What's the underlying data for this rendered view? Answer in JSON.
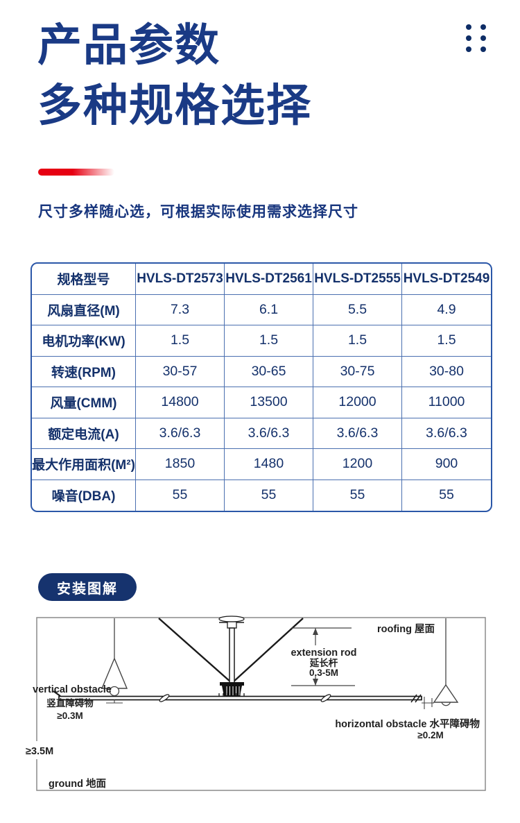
{
  "page": {
    "title_line1": "产品参数",
    "title_line2": "多种规格选择",
    "subtitle": "尺寸多样随心选，可根据实际使用需求选择尺寸"
  },
  "colors": {
    "navy_title": "#1a3a85",
    "table_border": "#2b57a8",
    "table_text": "#14316b",
    "accent_red": "#e60012",
    "button_bg": "#16336e"
  },
  "spec_table": {
    "header": [
      "规格型号",
      "HVLS-DT2573",
      "HVLS-DT2561",
      "HVLS-DT2555",
      "HVLS-DT2549"
    ],
    "rows": [
      {
        "label": "风扇直径(M)",
        "values": [
          "7.3",
          "6.1",
          "5.5",
          "4.9"
        ]
      },
      {
        "label": "电机功率(KW)",
        "values": [
          "1.5",
          "1.5",
          "1.5",
          "1.5"
        ]
      },
      {
        "label": "转速(RPM)",
        "values": [
          "30-57",
          "30-65",
          "30-75",
          "30-80"
        ]
      },
      {
        "label": "风量(CMM)",
        "values": [
          "14800",
          "13500",
          "12000",
          "11000"
        ]
      },
      {
        "label": "额定电流(A)",
        "values": [
          "3.6/6.3",
          "3.6/6.3",
          "3.6/6.3",
          "3.6/6.3"
        ]
      },
      {
        "label": "最大作用面积(M²)",
        "values": [
          "1850",
          "1480",
          "1200",
          "900"
        ]
      },
      {
        "label": "噪音(DBA)",
        "values": [
          "55",
          "55",
          "55",
          "55"
        ]
      }
    ]
  },
  "install": {
    "button_label": "安装图解",
    "labels": {
      "roofing": "roofing 屋面",
      "extension_rod_en": "extension rod",
      "extension_rod_cn": "延长杆",
      "extension_rod_range": "0.3-5M",
      "vertical_obstacle_en": "vertical obstacle",
      "vertical_obstacle_cn": "竖直障碍物",
      "vertical_obstacle_min": "≥0.3M",
      "horizontal_obstacle": "horizontal obstacle 水平障碍物",
      "horizontal_obstacle_min": "≥0.2M",
      "ground_clearance": "≥3.5M",
      "ground": "ground 地面"
    }
  }
}
